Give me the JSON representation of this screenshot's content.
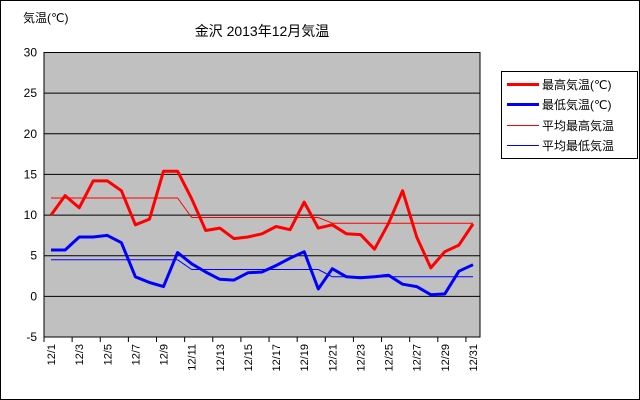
{
  "chart_data": {
    "type": "line",
    "title": "金沢 2013年12月気温",
    "ylabel": "気温(℃)",
    "ylim": [
      -5,
      30
    ],
    "yticks": [
      30,
      25,
      20,
      15,
      10,
      5,
      0,
      -5
    ],
    "x_tick_labels": [
      "12/1",
      "12/3",
      "12/5",
      "12/7",
      "12/9",
      "12/11",
      "12/13",
      "12/15",
      "12/17",
      "12/19",
      "12/21",
      "12/23",
      "12/25",
      "12/27",
      "12/29",
      "12/31"
    ],
    "days": 31,
    "grid": true,
    "plot_bg": "#c0c0c0",
    "legend_position": "right",
    "series": [
      {
        "name": "最高気温(℃)",
        "color": "#ff0000",
        "stroke_width": 3,
        "values": [
          10.0,
          12.4,
          10.9,
          14.2,
          14.2,
          13.0,
          8.8,
          9.5,
          15.4,
          15.4,
          12.0,
          8.1,
          8.4,
          7.1,
          7.3,
          7.7,
          8.6,
          8.2,
          11.6,
          8.4,
          8.8,
          7.7,
          7.6,
          5.8,
          9.0,
          13.0,
          7.3,
          3.5,
          5.5,
          6.3,
          8.9
        ]
      },
      {
        "name": "最低気温(℃)",
        "color": "#0000ff",
        "stroke_width": 3,
        "values": [
          5.7,
          5.7,
          7.3,
          7.3,
          7.5,
          6.6,
          2.4,
          1.7,
          1.2,
          5.4,
          4.0,
          3.0,
          2.1,
          2.0,
          2.9,
          3.0,
          3.8,
          4.7,
          5.5,
          0.9,
          3.4,
          2.4,
          2.3,
          2.4,
          2.6,
          1.5,
          1.2,
          0.2,
          0.3,
          3.1,
          3.9
        ]
      },
      {
        "name": "平均最高気温",
        "color": "#ff0000",
        "stroke_width": 1,
        "values": [
          12.1,
          12.1,
          12.1,
          12.1,
          12.1,
          12.1,
          12.1,
          12.1,
          12.1,
          12.1,
          9.7,
          9.7,
          9.7,
          9.7,
          9.7,
          9.7,
          9.7,
          9.7,
          9.7,
          9.7,
          9.0,
          9.0,
          9.0,
          9.0,
          9.0,
          9.0,
          9.0,
          9.0,
          9.0,
          9.0,
          9.0
        ]
      },
      {
        "name": "平均最低気温",
        "color": "#0000ff",
        "stroke_width": 1,
        "values": [
          4.5,
          4.5,
          4.5,
          4.5,
          4.5,
          4.5,
          4.5,
          4.5,
          4.5,
          4.5,
          3.3,
          3.3,
          3.3,
          3.3,
          3.3,
          3.3,
          3.3,
          3.3,
          3.3,
          3.3,
          2.4,
          2.4,
          2.4,
          2.4,
          2.4,
          2.4,
          2.4,
          2.4,
          2.4,
          2.4,
          2.4
        ]
      }
    ]
  }
}
